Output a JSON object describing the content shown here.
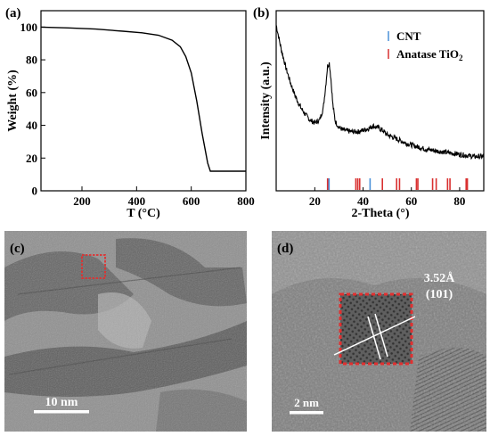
{
  "panels": {
    "a": {
      "letter": "(a)"
    },
    "b": {
      "letter": "(b)"
    },
    "c": {
      "letter": "(c)",
      "scalebar_label": "10 nm"
    },
    "d": {
      "letter": "(d)",
      "scalebar_label": "2 nm",
      "annotation_spacing": "3.52Å",
      "annotation_plane": "(101)"
    }
  },
  "chart_data": [
    {
      "panel": "a",
      "type": "line",
      "xlabel": "T (°C)",
      "ylabel": "Weight (%)",
      "xlim": [
        50,
        800
      ],
      "ylim": [
        0,
        110
      ],
      "xticks": [
        200,
        400,
        600,
        800
      ],
      "yticks": [
        0,
        20,
        40,
        60,
        80,
        100
      ],
      "grid": false,
      "series": [
        {
          "color": "#000000",
          "x": [
            50,
            150,
            250,
            350,
            420,
            480,
            530,
            560,
            580,
            600,
            620,
            640,
            660,
            670,
            700,
            800
          ],
          "y": [
            100,
            99.5,
            98.8,
            97.5,
            96.5,
            95,
            92,
            88,
            82,
            72,
            55,
            35,
            17,
            12,
            12,
            12
          ]
        }
      ]
    },
    {
      "panel": "b",
      "type": "line",
      "xlabel": "2-Theta (°)",
      "ylabel": "Intensity (a.u.)",
      "xlim": [
        4,
        90
      ],
      "xticks": [
        20,
        40,
        60,
        80
      ],
      "yticks_labeled": false,
      "legend_position": "top-right",
      "legend": [
        {
          "label": "CNT",
          "color": "#4a90d9"
        },
        {
          "label": "Anatase TiO",
          "subscript": "2",
          "color": "#d93030"
        }
      ],
      "series": [
        {
          "color": "#000000",
          "x": [
            4,
            6,
            8,
            10,
            12,
            14,
            16,
            18,
            20,
            22,
            23.5,
            24.5,
            25.3,
            26,
            26.7,
            27.5,
            28.5,
            30,
            32,
            35,
            38,
            40,
            42,
            44,
            46,
            48,
            50,
            54,
            58,
            62,
            66,
            70,
            74,
            78,
            82,
            86,
            90
          ],
          "y": [
            1.0,
            0.84,
            0.71,
            0.6,
            0.51,
            0.44,
            0.39,
            0.35,
            0.33,
            0.35,
            0.43,
            0.58,
            0.72,
            0.74,
            0.63,
            0.45,
            0.34,
            0.3,
            0.28,
            0.27,
            0.27,
            0.28,
            0.29,
            0.31,
            0.3,
            0.28,
            0.25,
            0.22,
            0.19,
            0.17,
            0.15,
            0.14,
            0.13,
            0.12,
            0.11,
            0.1,
            0.1
          ]
        }
      ],
      "reference_lines": [
        {
          "name": "CNT",
          "color": "#4a90d9",
          "x": [
            25.9,
            42.9
          ]
        },
        {
          "name": "Anatase TiO2",
          "color": "#d93030",
          "x": [
            25.3,
            37.0,
            37.8,
            38.6,
            48.0,
            53.9,
            55.1,
            62.1,
            62.7,
            68.8,
            70.3,
            75.0,
            76.0,
            82.7,
            83.2
          ]
        }
      ]
    }
  ]
}
